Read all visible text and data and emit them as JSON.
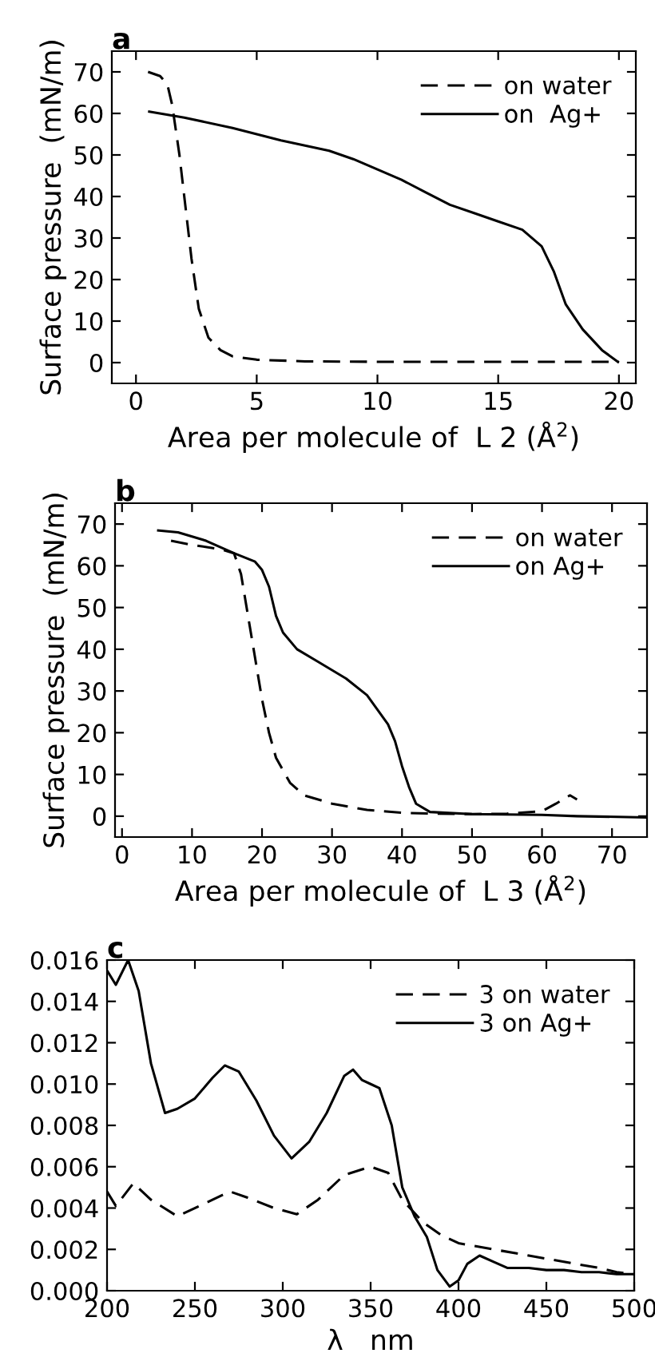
{
  "chart_data": [
    {
      "type": "line",
      "title": "a",
      "xlabel": "Area per molecule of  L 2 (Å$^{2}$)",
      "ylabel": "Surface pressure  (mN/m)",
      "xlim": [
        -1,
        20.7
      ],
      "ylim": [
        -5,
        75
      ],
      "xticks": [
        0,
        5,
        10,
        15,
        20
      ],
      "yticks": [
        0,
        10,
        20,
        30,
        40,
        50,
        60,
        70
      ],
      "legend": "top right",
      "grid": false,
      "series": [
        {
          "name": "on water",
          "color": "#000000",
          "line_style": "dashed",
          "x": [
            0.5,
            1,
            1.3,
            1.5,
            1.8,
            2,
            2.3,
            2.6,
            3,
            3.5,
            4,
            5,
            7,
            10,
            15,
            20
          ],
          "values": [
            70,
            69,
            67,
            62,
            50,
            40,
            25,
            13,
            6,
            3,
            1.5,
            0.7,
            0.3,
            0.2,
            0.2,
            0.2
          ]
        },
        {
          "name": "on  Ag+",
          "color": "#000000",
          "line_style": "solid",
          "x": [
            0.5,
            2,
            4,
            6,
            8,
            9,
            10,
            11,
            12,
            13,
            14,
            15,
            16,
            16.8,
            17.3,
            17.8,
            18.5,
            19.3,
            20
          ],
          "values": [
            60.5,
            59,
            56.5,
            53.5,
            51,
            49,
            46.5,
            44,
            41,
            38,
            36,
            34,
            32,
            28,
            22,
            14,
            8,
            3,
            0
          ]
        }
      ]
    },
    {
      "type": "line",
      "title": "b",
      "xlabel": "Area per molecule of  L 3 (Å$^{2}$)",
      "ylabel": "Surface pressure  (mN/m)",
      "xlim": [
        -1,
        75
      ],
      "ylim": [
        -5,
        75
      ],
      "xticks": [
        0,
        10,
        20,
        30,
        40,
        50,
        60,
        70
      ],
      "yticks": [
        0,
        10,
        20,
        30,
        40,
        50,
        60,
        70
      ],
      "legend": "top right",
      "grid": false,
      "series": [
        {
          "name": "on water",
          "color": "#000000",
          "line_style": "dashed",
          "x": [
            7,
            10,
            14,
            16,
            17,
            18,
            19,
            20,
            21,
            22,
            24,
            26,
            30,
            35,
            40,
            45,
            50,
            55,
            60,
            62,
            64,
            65
          ],
          "values": [
            66,
            65,
            64,
            63,
            58,
            48,
            38,
            28,
            20,
            14,
            8,
            5,
            3,
            1.5,
            0.8,
            0.6,
            0.5,
            0.6,
            1.2,
            3,
            5,
            4
          ]
        },
        {
          "name": "on Ag+",
          "color": "#000000",
          "line_style": "solid",
          "x": [
            5,
            8,
            12,
            16,
            19,
            20,
            21,
            22,
            23,
            25,
            28,
            32,
            35,
            38,
            39,
            40,
            41,
            42,
            44,
            50,
            60,
            65,
            75
          ],
          "values": [
            68.5,
            68,
            66,
            63,
            61,
            59,
            55,
            48,
            44,
            40,
            37,
            33,
            29,
            22,
            18,
            12,
            7,
            3,
            1,
            0.5,
            0.3,
            0,
            -0.3
          ]
        }
      ]
    },
    {
      "type": "line",
      "title": "c",
      "xlabel": "λ   nm",
      "xlim": [
        200,
        500
      ],
      "ylim": [
        0,
        0.016
      ],
      "xticks": [
        200,
        250,
        300,
        350,
        400,
        450,
        500
      ],
      "yticks": [
        {
          "value": 0,
          "label": "0.000"
        },
        {
          "value": 0.002,
          "label": "0.002"
        },
        {
          "value": 0.004,
          "label": "0.004"
        },
        {
          "value": 0.006,
          "label": "0.006"
        },
        {
          "value": 0.008,
          "label": "0.008"
        },
        {
          "value": 0.01,
          "label": "0.010"
        },
        {
          "value": 0.012,
          "label": "0.012"
        },
        {
          "value": 0.014,
          "label": "0.014"
        },
        {
          "value": 0.016,
          "label": "0.016"
        }
      ],
      "legend": "top right",
      "grid": false,
      "series": [
        {
          "name": "3 on water",
          "color": "#000000",
          "line_style": "dashed",
          "x": [
            200,
            205,
            215,
            225,
            240,
            255,
            270,
            280,
            295,
            308,
            320,
            335,
            350,
            360,
            368,
            380,
            390,
            400,
            420,
            440,
            460,
            480,
            490,
            500
          ],
          "values": [
            0.0048,
            0.0041,
            0.0052,
            0.0044,
            0.0036,
            0.0042,
            0.0048,
            0.0045,
            0.004,
            0.0037,
            0.0044,
            0.0056,
            0.006,
            0.0057,
            0.0044,
            0.0033,
            0.0027,
            0.0023,
            0.002,
            0.0017,
            0.0014,
            0.0011,
            0.0009,
            0.0008
          ]
        },
        {
          "name": "3 on Ag+",
          "color": "#000000",
          "line_style": "solid",
          "x": [
            200,
            205,
            212,
            218,
            225,
            233,
            240,
            250,
            260,
            267,
            275,
            285,
            295,
            305,
            315,
            325,
            335,
            340,
            345,
            350,
            355,
            362,
            368,
            375,
            382,
            388,
            395,
            400,
            405,
            412,
            420,
            428,
            440,
            450,
            460,
            470,
            480,
            490,
            500
          ],
          "values": [
            0.0155,
            0.0148,
            0.016,
            0.0145,
            0.011,
            0.0086,
            0.0088,
            0.0093,
            0.0103,
            0.0109,
            0.0106,
            0.0092,
            0.0075,
            0.0064,
            0.0072,
            0.0086,
            0.0104,
            0.0107,
            0.0102,
            0.01,
            0.0098,
            0.008,
            0.005,
            0.0036,
            0.0026,
            0.001,
            0.0002,
            0.0005,
            0.0013,
            0.0017,
            0.0014,
            0.0011,
            0.0011,
            0.001,
            0.001,
            0.0009,
            0.0009,
            0.0008,
            0.0008
          ]
        }
      ]
    }
  ]
}
